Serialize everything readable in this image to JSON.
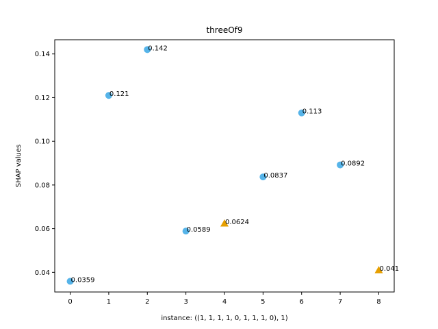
{
  "chart_data": {
    "type": "scatter",
    "title": "threeOf9",
    "xlabel": "instance: ((1, 1, 1, 1, 0, 1, 1, 1, 0), 1)",
    "ylabel": "SHAP values",
    "xlim": [
      -0.4,
      8.4
    ],
    "ylim": [
      0.031,
      0.1465
    ],
    "xticks": [
      0,
      1,
      2,
      3,
      4,
      5,
      6,
      7,
      8
    ],
    "xtick_labels": [
      "0",
      "1",
      "2",
      "3",
      "4",
      "5",
      "6",
      "7",
      "8"
    ],
    "yticks": [
      0.04,
      0.06,
      0.08,
      0.1,
      0.12,
      0.14
    ],
    "ytick_labels": [
      "0.04",
      "0.06",
      "0.08",
      "0.10",
      "0.12",
      "0.14"
    ],
    "grid": false,
    "colors": {
      "circle": "#56b4e9",
      "triangle": "#e69f00"
    },
    "points": [
      {
        "x": 0,
        "y": 0.0359,
        "label": "0.0359",
        "marker": "circle"
      },
      {
        "x": 1,
        "y": 0.121,
        "label": "0.121",
        "marker": "circle"
      },
      {
        "x": 2,
        "y": 0.142,
        "label": "0.142",
        "marker": "circle"
      },
      {
        "x": 3,
        "y": 0.0589,
        "label": "0.0589",
        "marker": "circle"
      },
      {
        "x": 4,
        "y": 0.0624,
        "label": "0.0624",
        "marker": "triangle"
      },
      {
        "x": 5,
        "y": 0.0837,
        "label": "0.0837",
        "marker": "circle"
      },
      {
        "x": 6,
        "y": 0.113,
        "label": "0.113",
        "marker": "circle"
      },
      {
        "x": 7,
        "y": 0.0892,
        "label": "0.0892",
        "marker": "circle"
      },
      {
        "x": 8,
        "y": 0.041,
        "label": "0.041",
        "marker": "triangle"
      }
    ]
  }
}
